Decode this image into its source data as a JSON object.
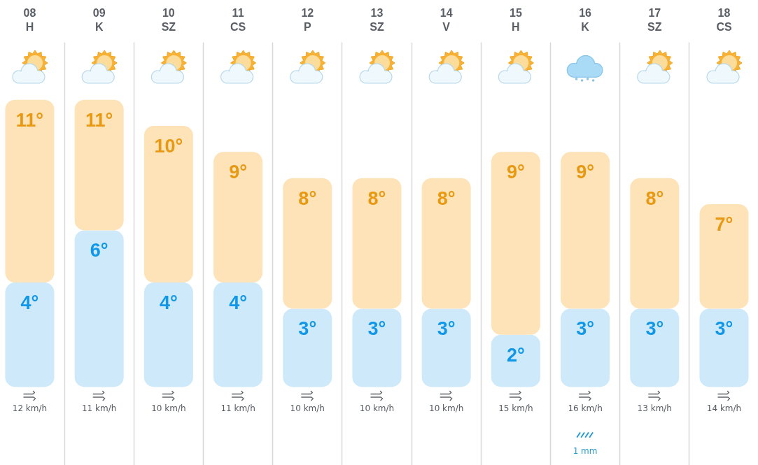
{
  "chart_data": {
    "type": "bar",
    "stacked": true,
    "categories": [
      "08\nH",
      "09\nK",
      "10\nSZ",
      "11\nCS",
      "12\nP",
      "13\nSZ",
      "14\nV",
      "15\nH",
      "16\nK",
      "17\nSZ",
      "18\nCS"
    ],
    "series": [
      {
        "color": "#cde9fa",
        "values": [
          4,
          6,
          4,
          4,
          3,
          3,
          3,
          2,
          3,
          3,
          3
        ],
        "value_labels": [
          "4°",
          "6°",
          "4°",
          "4°",
          "3°",
          "3°",
          "3°",
          "2°",
          "3°",
          "3°",
          "3°"
        ]
      },
      {
        "color": "#fde3b7",
        "values": [
          7,
          5,
          6,
          5,
          5,
          5,
          5,
          7,
          6,
          5,
          4
        ]
      }
    ],
    "totals": [
      "11°",
      "11°",
      "10°",
      "9°",
      "8°",
      "8°",
      "8°",
      "9°",
      "9°",
      "8°",
      "7°"
    ],
    "ylim": [
      -3,
      13.2
    ],
    "tick_labels": "x",
    "grid": "x",
    "annotations": [
      "12 km/h",
      "11 km/h",
      "10 km/h",
      "11 km/h",
      "10 km/h",
      "10 km/h",
      "10 km/h",
      "15 km/h",
      "16 km/h\n1 mm",
      "13 km/h",
      "14 km/h"
    ]
  }
}
